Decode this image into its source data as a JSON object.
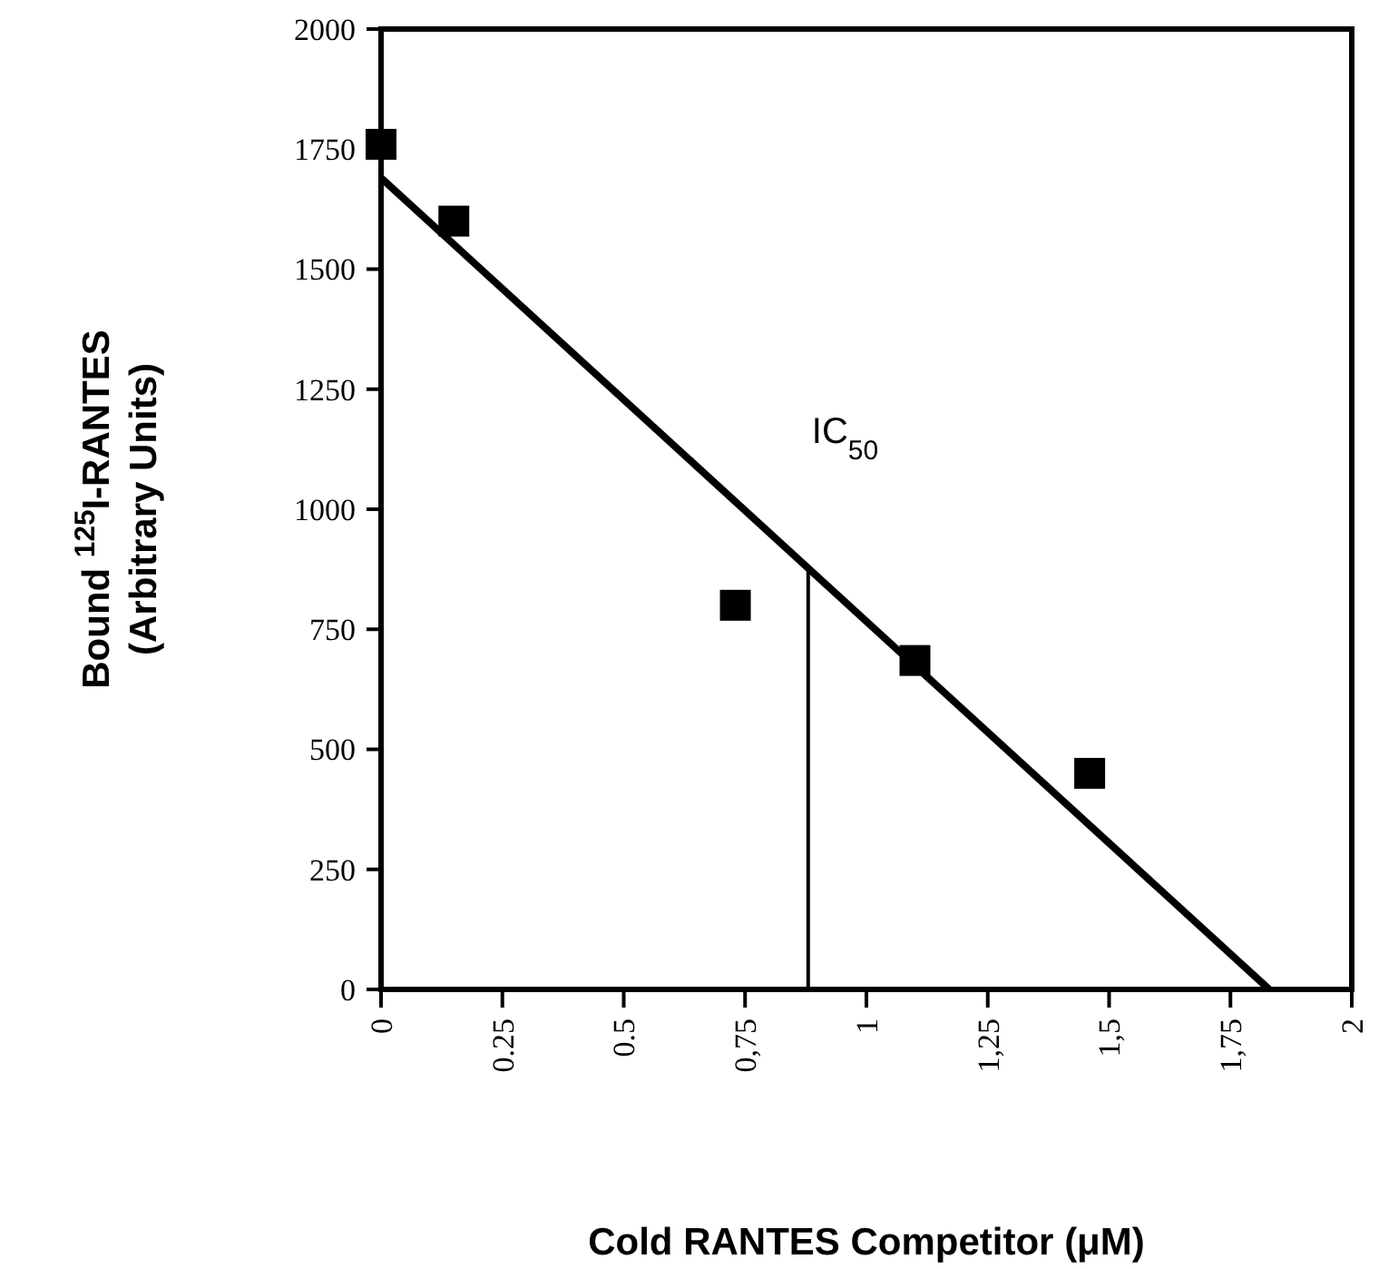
{
  "chart_data": {
    "type": "scatter",
    "xlabel": "Cold RANTES Competitor (μM)",
    "ylabel": "Bound $^{125}$I-RANTES\n(Arbitrary Units)",
    "grid": false,
    "xlim": [
      0,
      2
    ],
    "xticks": [
      0,
      {
        "value": 0.25,
        "label": "0.25"
      },
      {
        "value": 0.5,
        "label": "0.5"
      },
      {
        "value": 0.75,
        "label": "0,75"
      },
      1,
      {
        "value": 1.25,
        "label": "1,25"
      },
      {
        "value": 1.5,
        "label": "1,5"
      },
      {
        "value": 1.75,
        "label": "1,75"
      },
      2
    ],
    "ylim": [
      0,
      2000
    ],
    "yticks": [
      0,
      250,
      500,
      750,
      1000,
      1250,
      1500,
      1750,
      2000
    ],
    "series": [
      {
        "marker": "square",
        "color": "#000000",
        "x": [
          0,
          0.15,
          0.73,
          1.1,
          1.46
        ],
        "values": [
          1760,
          1600,
          800,
          685,
          450
        ]
      },
      {
        "type": "line",
        "marker": "none",
        "color": "#000000",
        "x": [
          0,
          1.83
        ],
        "values": [
          1690,
          0
        ]
      },
      {
        "type": "line",
        "marker": "none",
        "color": "#000000",
        "x": [
          0.88,
          0.88
        ],
        "values": [
          0,
          874
        ]
      }
    ],
    "annotations": [
      {
        "text": "IC$_{50}$",
        "x": 0.88,
        "y": 874
      }
    ]
  }
}
